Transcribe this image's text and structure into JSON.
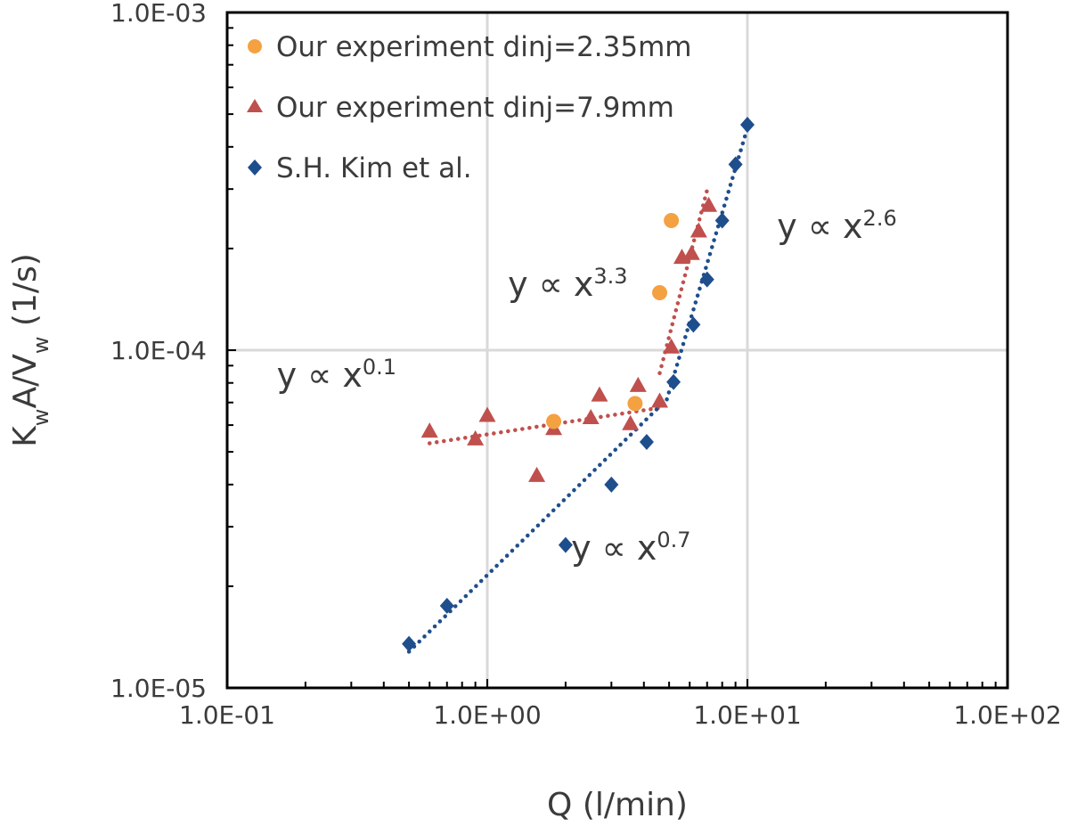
{
  "chart_data": {
    "type": "scatter",
    "x_scale": "log",
    "y_scale": "log",
    "xlim": [
      0.1,
      100
    ],
    "ylim": [
      1e-05,
      0.001
    ],
    "xlabel": "Q (l/min)",
    "ylabel": {
      "base1": "K",
      "sub1": "w",
      "mid": "A/V",
      "sub2": "w",
      "unit": " (1/s)"
    },
    "x_tick_values": [
      0.1,
      1,
      10,
      100
    ],
    "x_tick_labels": [
      "1.0E-01",
      "1.0E+00",
      "1.0E+01",
      "1.0E+02"
    ],
    "y_tick_values": [
      1e-05,
      0.0001,
      0.001
    ],
    "y_tick_labels": [
      "1.0E-05",
      "1.0E-04",
      "1.0E-03"
    ],
    "grid": true,
    "legend_position": "top-left",
    "series": [
      {
        "name": "Our experiment dinj=2.35mm",
        "marker": "circle",
        "color": "#f4a142",
        "points": [
          [
            1.8,
            6.15e-05
          ],
          [
            3.7,
            6.95e-05
          ],
          [
            4.6,
            0.000148
          ],
          [
            5.1,
            0.000242
          ]
        ]
      },
      {
        "name": "Our experiment dinj=7.9mm",
        "marker": "triangle",
        "color": "#c0504d",
        "points": [
          [
            0.6,
            5.75e-05
          ],
          [
            0.9,
            5.45e-05
          ],
          [
            1.0,
            6.4e-05
          ],
          [
            1.55,
            4.25e-05
          ],
          [
            1.8,
            5.85e-05
          ],
          [
            2.5,
            6.3e-05
          ],
          [
            2.7,
            7.35e-05
          ],
          [
            3.55,
            6.05e-05
          ],
          [
            3.8,
            7.85e-05
          ],
          [
            4.6,
            7.05e-05
          ],
          [
            5.1,
            0.000102
          ],
          [
            5.6,
            0.000188
          ],
          [
            6.1,
            0.000193
          ],
          [
            6.5,
            0.000225
          ],
          [
            7.1,
            0.000268
          ]
        ]
      },
      {
        "name": "S.H. Kim et al.",
        "marker": "diamond",
        "color": "#1f4e8c",
        "points": [
          [
            0.5,
            1.35e-05
          ],
          [
            0.7,
            1.75e-05
          ],
          [
            2.0,
            2.65e-05
          ],
          [
            3.0,
            4e-05
          ],
          [
            4.1,
            5.35e-05
          ],
          [
            5.2,
            8.05e-05
          ],
          [
            6.2,
            0.000119
          ],
          [
            7.0,
            0.000162
          ],
          [
            8.0,
            0.000242
          ],
          [
            9.0,
            0.000355
          ],
          [
            10.0,
            0.000465
          ]
        ]
      }
    ],
    "trendlines": [
      {
        "series": "Our experiment dinj=7.9mm",
        "color": "#c0504d",
        "segments": [
          [
            [
              0.6,
              5.3e-05
            ],
            [
              4.6,
              6.75e-05
            ]
          ],
          [
            [
              4.6,
              8.55e-05
            ],
            [
              7.0,
              0.000298
            ]
          ]
        ]
      },
      {
        "series": "S.H. Kim et al.",
        "color": "#1f4e8c",
        "segments": [
          [
            [
              0.5,
              1.28e-05
            ],
            [
              4.9,
              7.15e-05
            ]
          ],
          [
            [
              4.9,
              7.15e-05
            ],
            [
              10.0,
              0.000455
            ]
          ]
        ]
      }
    ],
    "annotations": [
      {
        "base": "y ∝ x",
        "exp": "0.1",
        "at": [
          0.155,
          7.8e-05
        ]
      },
      {
        "base": "y ∝ x",
        "exp": "3.3",
        "at": [
          1.2,
          0.000145
        ]
      },
      {
        "base": "y ∝ x",
        "exp": "2.6",
        "at": [
          13,
          0.000215
        ]
      },
      {
        "base": "y ∝ x",
        "exp": "0.7",
        "at": [
          2.1,
          2.4e-05
        ]
      }
    ]
  }
}
